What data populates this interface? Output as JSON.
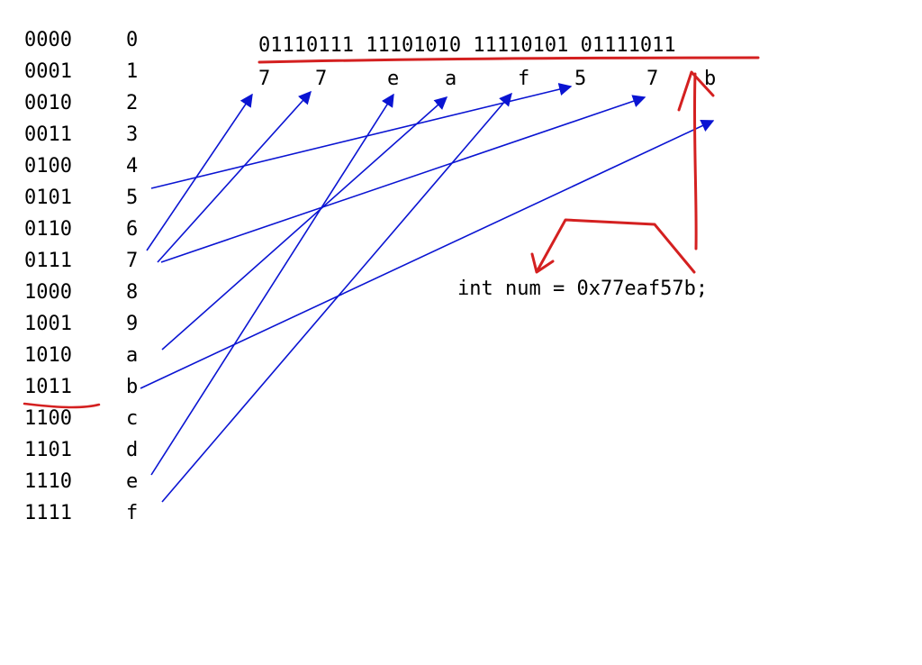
{
  "colors": {
    "arrow_blue": "#0a14d2",
    "annotation_red": "#d42020",
    "text": "#000000",
    "background": "#ffffff"
  },
  "hex_table": [
    {
      "bin": "0000",
      "hex": "0"
    },
    {
      "bin": "0001",
      "hex": "1"
    },
    {
      "bin": "0010",
      "hex": "2"
    },
    {
      "bin": "0011",
      "hex": "3"
    },
    {
      "bin": "0100",
      "hex": "4"
    },
    {
      "bin": "0101",
      "hex": "5"
    },
    {
      "bin": "0110",
      "hex": "6"
    },
    {
      "bin": "0111",
      "hex": "7"
    },
    {
      "bin": "1000",
      "hex": "8"
    },
    {
      "bin": "1001",
      "hex": "9"
    },
    {
      "bin": "1010",
      "hex": "a"
    },
    {
      "bin": "1011",
      "hex": "b"
    },
    {
      "bin": "1100",
      "hex": "c"
    },
    {
      "bin": "1101",
      "hex": "d"
    },
    {
      "bin": "1110",
      "hex": "e"
    },
    {
      "bin": "1111",
      "hex": "f"
    }
  ],
  "binary_number": "01110111 11101010 11110101 01111011",
  "hex_digits": [
    "7",
    "7",
    "e",
    "a",
    "f",
    "5",
    "7",
    "b"
  ],
  "code_line": "int num = 0x77eaf57b;",
  "mappings": [
    {
      "from": "7",
      "to_index": 0
    },
    {
      "from": "7",
      "to_index": 1
    },
    {
      "from": "e",
      "to_index": 2
    },
    {
      "from": "a",
      "to_index": 3
    },
    {
      "from": "f",
      "to_index": 4
    },
    {
      "from": "5",
      "to_index": 5
    },
    {
      "from": "7",
      "to_index": 6
    },
    {
      "from": "b",
      "to_index": 7
    }
  ]
}
